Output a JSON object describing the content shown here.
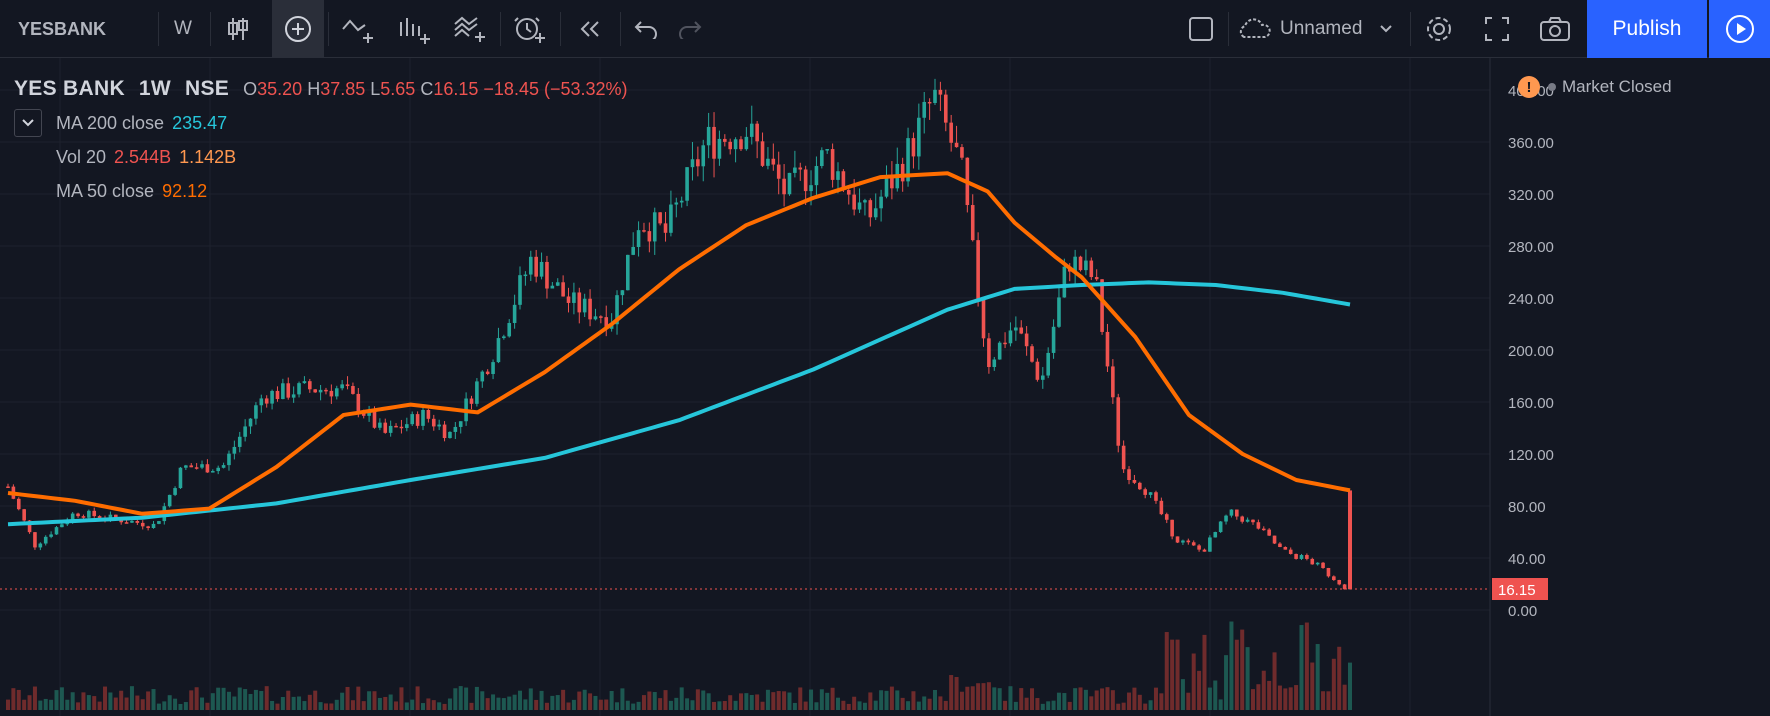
{
  "toolbar": {
    "symbol": "YESBANK",
    "interval": "W",
    "layout_name": "Unnamed",
    "publish_label": "Publish"
  },
  "legend": {
    "symbol": "YES BANK",
    "interval": "1W",
    "exchange": "NSE",
    "open_label": "O",
    "open": "35.20",
    "high_label": "H",
    "high": "37.85",
    "low_label": "L",
    "low": "5.65",
    "close_label": "C",
    "close": "16.15",
    "change": "−18.45 (−53.32%)",
    "ma200_label": "MA 200 close",
    "ma200_value": "235.47",
    "vol_label": "Vol 20",
    "vol_value1": "2.544B",
    "vol_value2": "1.142B",
    "ma50_label": "MA 50 close",
    "ma50_value": "92.12"
  },
  "status": {
    "market": "Market Closed"
  },
  "colors": {
    "up": "#26a69a",
    "down": "#ef5350",
    "ma200": "#26c6da",
    "ma50": "#ff6d00",
    "background": "#131722",
    "accent": "#2962ff"
  },
  "icons": [
    "candles-icon",
    "crosshair-icon",
    "indicators-icon",
    "compare-icon",
    "templates-icon",
    "alert-icon",
    "replay-icon",
    "undo-icon",
    "redo-icon",
    "fullscreen-icon",
    "camera-icon",
    "settings-icon",
    "cloud-icon",
    "play-icon"
  ],
  "chart_data": {
    "type": "line",
    "title": "YES BANK · 1W · NSE",
    "y_axis": {
      "range": [
        0,
        400
      ],
      "ticks": [
        "400.00",
        "360.00",
        "320.00",
        "280.00",
        "240.00",
        "200.00",
        "160.00",
        "120.00",
        "80.00",
        "40.00",
        "0.00"
      ]
    },
    "last_price_label": "16.15",
    "grid": true,
    "series": [
      {
        "name": "MA 200 close",
        "color": "#26c6da",
        "x": [
          0,
          0.1,
          0.2,
          0.3,
          0.4,
          0.5,
          0.6,
          0.7,
          0.75,
          0.8,
          0.85,
          0.9,
          0.95,
          1.0
        ],
        "values": [
          66,
          71,
          82,
          100,
          117,
          146,
          185,
          231,
          247,
          250,
          252,
          250,
          244,
          235
        ]
      },
      {
        "name": "MA 50 close",
        "color": "#ff6d00",
        "x": [
          0,
          0.05,
          0.1,
          0.15,
          0.2,
          0.25,
          0.3,
          0.35,
          0.4,
          0.45,
          0.5,
          0.55,
          0.6,
          0.65,
          0.7,
          0.73,
          0.75,
          0.78,
          0.8,
          0.84,
          0.88,
          0.92,
          0.96,
          1.0
        ],
        "values": [
          90,
          84,
          74,
          78,
          110,
          150,
          158,
          152,
          183,
          220,
          262,
          296,
          317,
          333,
          336,
          322,
          298,
          272,
          256,
          210,
          150,
          120,
          100,
          92
        ]
      },
      {
        "name": "Price (approx. trace)",
        "color": "#26a69a",
        "x": [
          0,
          0.02,
          0.05,
          0.08,
          0.11,
          0.13,
          0.16,
          0.19,
          0.22,
          0.25,
          0.28,
          0.31,
          0.33,
          0.36,
          0.39,
          0.42,
          0.45,
          0.47,
          0.49,
          0.52,
          0.55,
          0.58,
          0.61,
          0.64,
          0.67,
          0.69,
          0.71,
          0.73,
          0.75,
          0.77,
          0.79,
          0.81,
          0.83,
          0.85,
          0.87,
          0.89,
          0.91,
          0.93,
          0.95,
          0.97,
          1.0
        ],
        "values": [
          95,
          50,
          75,
          70,
          65,
          110,
          110,
          165,
          170,
          170,
          135,
          150,
          135,
          195,
          270,
          235,
          225,
          300,
          290,
          360,
          370,
          320,
          350,
          300,
          350,
          395,
          340,
          190,
          220,
          175,
          270,
          255,
          110,
          90,
          55,
          45,
          75,
          65,
          45,
          38,
          16
        ]
      }
    ]
  }
}
